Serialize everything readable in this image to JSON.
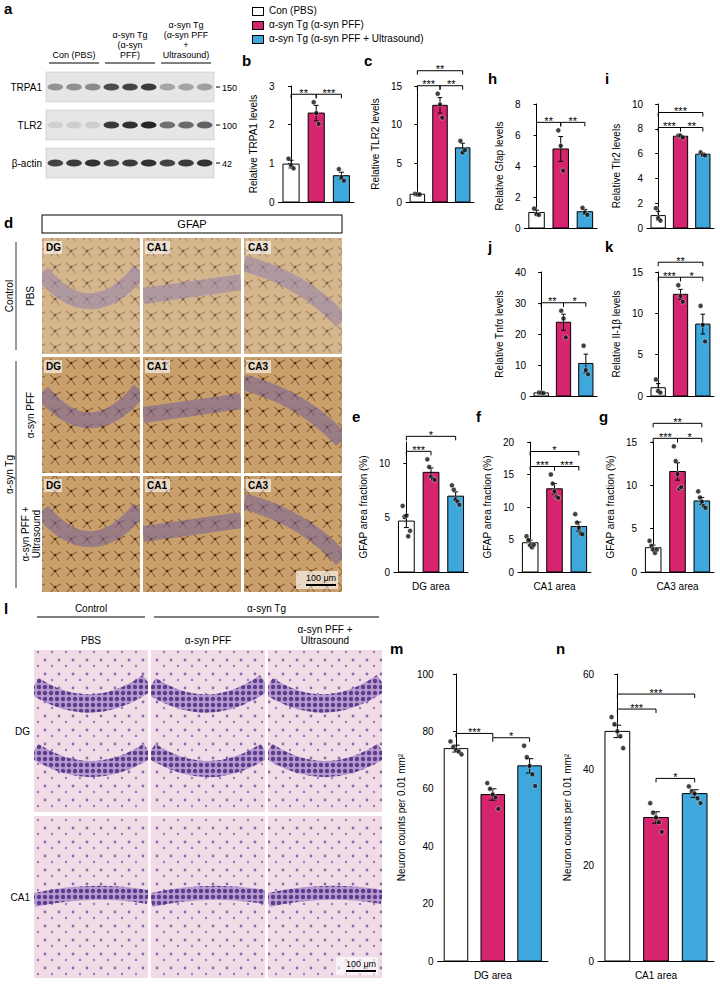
{
  "chart_data": [
    {
      "type": "bar",
      "panel": "b",
      "ylabel": "Relative TRPA1 levels",
      "categories": [
        "Con (PBS)",
        "α-syn Tg (α-syn PFF)",
        "α-syn Tg (α-syn PFF + Ultrasound)"
      ],
      "colors": [
        "#ffffff",
        "#d6246e",
        "#3ea8dc"
      ],
      "values": [
        0.98,
        2.3,
        0.68
      ],
      "errors": [
        0.1,
        0.2,
        0.09
      ],
      "points": [
        [
          1.12,
          0.95,
          0.87
        ],
        [
          2.58,
          2.3,
          2.02
        ],
        [
          0.85,
          0.64,
          0.55
        ]
      ],
      "ylim": [
        0,
        3
      ],
      "yticks": [
        0,
        1,
        2,
        3
      ],
      "grid": false,
      "tick_labels": "y",
      "legend": "top",
      "annotations": [
        {
          "from": 0,
          "to": 1,
          "text": "**"
        },
        {
          "from": 1,
          "to": 2,
          "text": "***"
        }
      ]
    },
    {
      "type": "bar",
      "panel": "c",
      "ylabel": "Relative TLR2 levels",
      "categories": [
        "Con (PBS)",
        "α-syn Tg (α-syn PFF)",
        "α-syn Tg (α-syn PFF + Ultrasound)"
      ],
      "colors": [
        "#ffffff",
        "#d6246e",
        "#3ea8dc"
      ],
      "values": [
        1.0,
        12.5,
        7.0
      ],
      "errors": [
        0.05,
        1.0,
        0.6
      ],
      "points": [
        [
          1.05,
          0.98,
          0.97
        ],
        [
          14.0,
          12.6,
          10.9
        ],
        [
          7.9,
          6.4,
          6.7
        ]
      ],
      "ylim": [
        0,
        15
      ],
      "yticks": [
        0,
        5,
        10,
        15
      ],
      "grid": false,
      "tick_labels": "y",
      "annotations": [
        {
          "from": 0,
          "to": 1,
          "text": "***"
        },
        {
          "from": 1,
          "to": 2,
          "text": "**"
        },
        {
          "from": 0,
          "to": 2,
          "text": "**"
        }
      ]
    },
    {
      "type": "bar",
      "panel": "h",
      "ylabel": "Relative Gfap levels",
      "categories": [
        "Con (PBS)",
        "α-syn Tg (α-syn PFF)",
        "α-syn Tg (α-syn PFF + Ultrasound)"
      ],
      "colors": [
        "#ffffff",
        "#d6246e",
        "#3ea8dc"
      ],
      "values": [
        1.0,
        5.1,
        1.05
      ],
      "errors": [
        0.15,
        0.8,
        0.15
      ],
      "points": [
        [
          1.25,
          0.9,
          0.85
        ],
        [
          6.3,
          5.3,
          3.7
        ],
        [
          1.3,
          1.0,
          0.85
        ]
      ],
      "ylim": [
        0,
        8
      ],
      "yticks": [
        0,
        2,
        4,
        6,
        8
      ],
      "grid": false,
      "tick_labels": "y",
      "annotations": [
        {
          "from": 0,
          "to": 1,
          "text": "**"
        },
        {
          "from": 1,
          "to": 2,
          "text": "**"
        }
      ]
    },
    {
      "type": "bar",
      "panel": "i",
      "ylabel": "Relative Tlr2 levels",
      "categories": [
        "Con (PBS)",
        "α-syn Tg (α-syn PFF)",
        "α-syn Tg (α-syn PFF + Ultrasound)"
      ],
      "colors": [
        "#ffffff",
        "#d6246e",
        "#3ea8dc"
      ],
      "values": [
        1.0,
        7.4,
        5.95
      ],
      "errors": [
        0.35,
        0.06,
        0.1
      ],
      "points": [
        [
          1.6,
          0.8,
          0.6
        ],
        [
          7.45,
          7.45,
          7.3
        ],
        [
          6.1,
          5.9,
          5.85
        ]
      ],
      "ylim": [
        0,
        10
      ],
      "yticks": [
        0,
        2,
        4,
        6,
        8,
        10
      ],
      "grid": false,
      "tick_labels": "y",
      "annotations": [
        {
          "from": 0,
          "to": 1,
          "text": "***"
        },
        {
          "from": 1,
          "to": 2,
          "text": "**"
        },
        {
          "from": 0,
          "to": 2,
          "text": "***"
        }
      ]
    },
    {
      "type": "bar",
      "panel": "j",
      "ylabel": "Relative Tnfα levels",
      "categories": [
        "Con (PBS)",
        "α-syn Tg (α-syn PFF)",
        "α-syn Tg (α-syn PFF + Ultrasound)"
      ],
      "colors": [
        "#ffffff",
        "#d6246e",
        "#3ea8dc"
      ],
      "values": [
        1.0,
        23.8,
        10.5
      ],
      "errors": [
        0.05,
        2.6,
        3.0
      ],
      "points": [
        [
          1.1,
          1.0,
          0.9
        ],
        [
          27.5,
          25.0,
          18.9
        ],
        [
          16.2,
          8.3,
          7.0
        ]
      ],
      "ylim": [
        0,
        40
      ],
      "yticks": [
        0,
        10,
        20,
        30,
        40
      ],
      "grid": false,
      "tick_labels": "y",
      "annotations": [
        {
          "from": 0,
          "to": 1,
          "text": "**"
        },
        {
          "from": 1,
          "to": 2,
          "text": "*"
        }
      ]
    },
    {
      "type": "bar",
      "panel": "k",
      "ylabel": "Relative Il-1β levels",
      "categories": [
        "Con (PBS)",
        "α-syn Tg (α-syn PFF)",
        "α-syn Tg (α-syn PFF + Ultrasound)"
      ],
      "colors": [
        "#ffffff",
        "#d6246e",
        "#3ea8dc"
      ],
      "values": [
        1.0,
        12.3,
        8.7
      ],
      "errors": [
        0.5,
        0.6,
        1.2
      ],
      "points": [
        [
          2.0,
          0.6,
          0.4
        ],
        [
          13.4,
          12.1,
          11.4
        ],
        [
          10.9,
          8.6,
          6.6
        ]
      ],
      "ylim": [
        0,
        15
      ],
      "yticks": [
        0,
        5,
        10,
        15
      ],
      "grid": false,
      "tick_labels": "y",
      "annotations": [
        {
          "from": 0,
          "to": 1,
          "text": "***"
        },
        {
          "from": 1,
          "to": 2,
          "text": "*"
        },
        {
          "from": 0,
          "to": 2,
          "text": "**"
        }
      ]
    },
    {
      "type": "bar",
      "panel": "e",
      "ylabel": "GFAP area fraction (%)",
      "xlabel": "DG area",
      "categories": [
        "Con (PBS)",
        "α-syn Tg (α-syn PFF)",
        "α-syn Tg (α-syn PFF + Ultrasound)"
      ],
      "colors": [
        "#ffffff",
        "#d6246e",
        "#3ea8dc"
      ],
      "values": [
        4.7,
        9.2,
        7.0
      ],
      "errors": [
        0.6,
        0.4,
        0.4
      ],
      "points": [
        [
          6.1,
          5.1,
          5.2,
          3.3,
          3.8
        ],
        [
          10.4,
          9.7,
          8.8,
          8.6,
          8.5
        ],
        [
          8.0,
          7.6,
          6.7,
          6.5,
          6.2
        ]
      ],
      "ylim": [
        0,
        12
      ],
      "yticks": [
        0,
        5,
        10
      ],
      "grid": false,
      "tick_labels": "y",
      "annotations": [
        {
          "from": 0,
          "to": 1,
          "text": "***"
        },
        {
          "from": 0,
          "to": 2,
          "text": "*"
        }
      ]
    },
    {
      "type": "bar",
      "panel": "f",
      "ylabel": "GFAP area fraction (%)",
      "xlabel": "CA1 area",
      "categories": [
        "Con (PBS)",
        "α-syn Tg (α-syn PFF)",
        "α-syn Tg (α-syn PFF + Ultrasound)"
      ],
      "colors": [
        "#ffffff",
        "#d6246e",
        "#3ea8dc"
      ],
      "values": [
        4.5,
        12.8,
        7.0
      ],
      "errors": [
        0.4,
        0.8,
        0.7
      ],
      "points": [
        [
          5.5,
          4.9,
          4.1,
          3.8,
          4.2
        ],
        [
          15.0,
          13.6,
          12.4,
          11.6,
          11.4
        ],
        [
          8.9,
          7.6,
          6.8,
          5.9,
          5.8
        ]
      ],
      "ylim": [
        0,
        20
      ],
      "yticks": [
        0,
        5,
        10,
        15,
        20
      ],
      "grid": false,
      "tick_labels": "y",
      "annotations": [
        {
          "from": 0,
          "to": 1,
          "text": "***"
        },
        {
          "from": 1,
          "to": 2,
          "text": "***"
        },
        {
          "from": 0,
          "to": 2,
          "text": "*"
        }
      ]
    },
    {
      "type": "bar",
      "panel": "g",
      "ylabel": "GFAP area fraction (%)",
      "xlabel": "CA3 area",
      "categories": [
        "Con (PBS)",
        "α-syn Tg (α-syn PFF)",
        "α-syn Tg (α-syn PFF + Ultrasound)"
      ],
      "colors": [
        "#ffffff",
        "#d6246e",
        "#3ea8dc"
      ],
      "values": [
        2.8,
        11.6,
        8.2
      ],
      "errors": [
        0.3,
        1.0,
        0.4
      ],
      "points": [
        [
          3.6,
          3.0,
          2.6,
          2.2,
          2.6
        ],
        [
          14.5,
          12.8,
          11.3,
          9.6,
          9.8
        ],
        [
          9.3,
          8.6,
          8.1,
          7.6,
          7.4
        ]
      ],
      "ylim": [
        0,
        15
      ],
      "yticks": [
        0,
        5,
        10,
        15
      ],
      "grid": false,
      "tick_labels": "y",
      "annotations": [
        {
          "from": 0,
          "to": 1,
          "text": "***"
        },
        {
          "from": 1,
          "to": 2,
          "text": "*"
        },
        {
          "from": 0,
          "to": 2,
          "text": "**"
        }
      ]
    },
    {
      "type": "bar",
      "panel": "m",
      "ylabel": "Neuron counts per 0.01 mm²",
      "xlabel": "DG area",
      "categories": [
        "Con (PBS)",
        "α-syn Tg (α-syn PFF)",
        "α-syn Tg (α-syn PFF + Ultrasound)"
      ],
      "colors": [
        "#ffffff",
        "#d6246e",
        "#3ea8dc"
      ],
      "values": [
        74,
        58,
        68
      ],
      "errors": [
        1.2,
        2.0,
        2.5
      ],
      "points": [
        [
          76.5,
          74.5,
          73.5,
          73,
          72
        ],
        [
          62,
          60,
          58,
          57,
          53
        ],
        [
          75,
          71,
          68,
          65,
          61
        ]
      ],
      "ylim": [
        0,
        100
      ],
      "yticks": [
        0,
        20,
        40,
        60,
        80,
        100
      ],
      "grid": false,
      "tick_labels": "y",
      "annotations": [
        {
          "from": 0,
          "to": 1,
          "text": "***"
        },
        {
          "from": 1,
          "to": 2,
          "text": "*"
        }
      ]
    },
    {
      "type": "bar",
      "panel": "n",
      "ylabel": "Neuron counts per 0.01 mm²",
      "xlabel": "CA1 area",
      "categories": [
        "Con (PBS)",
        "α-syn Tg (α-syn PFF)",
        "α-syn Tg (α-syn PFF + Ultrasound)"
      ],
      "colors": [
        "#ffffff",
        "#d6246e",
        "#3ea8dc"
      ],
      "values": [
        48,
        30,
        35
      ],
      "errors": [
        1.3,
        1.2,
        0.8
      ],
      "points": [
        [
          51,
          49.5,
          48,
          47,
          44.5
        ],
        [
          33,
          31,
          30,
          29,
          27
        ],
        [
          36.5,
          35.5,
          35,
          34,
          33
        ]
      ],
      "ylim": [
        0,
        60
      ],
      "yticks": [
        0,
        20,
        40,
        60
      ],
      "grid": false,
      "tick_labels": "y",
      "annotations": [
        {
          "from": 0,
          "to": 1,
          "text": "***"
        },
        {
          "from": 1,
          "to": 2,
          "text": "*"
        },
        {
          "from": 0,
          "to": 2,
          "text": "***"
        }
      ]
    }
  ],
  "blot": {
    "panel": "a",
    "columns": [
      "Con (PBS)",
      "α-syn Tg (α-syn PFF)",
      "α-syn Tg (α-syn PFF + Ultrasound)"
    ],
    "rows": [
      {
        "label": "TRPA1",
        "mw": 150
      },
      {
        "label": "TLR2",
        "mw": 100
      },
      {
        "label": "β-actin",
        "mw": 42
      }
    ]
  },
  "gfap_staining": {
    "panel": "d",
    "stain": "GFAP",
    "row_groups": [
      {
        "label": "Control",
        "rows": [
          "PBS"
        ]
      },
      {
        "label": "α-syn Tg",
        "rows": [
          "α-syn PFF",
          "α-syn PFF + Ultrasound"
        ]
      }
    ],
    "columns": [
      "DG",
      "CA1",
      "CA3"
    ],
    "scale_bar": "100 μm"
  },
  "nissl_staining": {
    "panel": "l",
    "column_groups": [
      {
        "label": "Control",
        "columns": [
          "PBS"
        ]
      },
      {
        "label": "α-syn Tg",
        "columns": [
          "α-syn PFF",
          "α-syn PFF + Ultrasound"
        ]
      }
    ],
    "rows": [
      "DG",
      "CA1"
    ],
    "scale_bar": "100 μm"
  }
}
